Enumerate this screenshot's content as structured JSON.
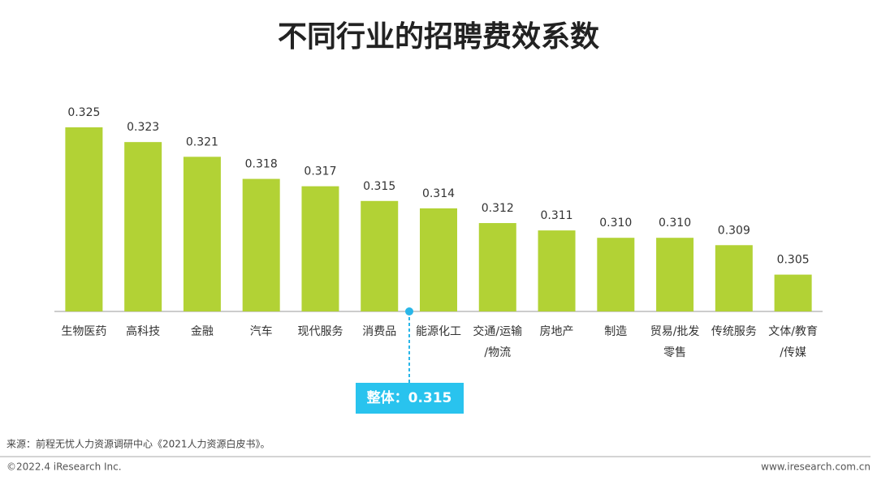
{
  "chart_data": {
    "type": "bar",
    "title": "不同行业的招聘费效系数",
    "categories": [
      "生物医药",
      "高科技",
      "金融",
      "汽车",
      "现代服务",
      "消费品",
      "能源化工",
      "交通/运输/物流",
      "房地产",
      "制造",
      "贸易/批发零售",
      "传统服务",
      "文体/教育/传媒"
    ],
    "values": [
      0.325,
      0.323,
      0.321,
      0.318,
      0.317,
      0.315,
      0.314,
      0.312,
      0.311,
      0.31,
      0.31,
      0.309,
      0.305
    ],
    "value_labels": [
      "0.325",
      "0.323",
      "0.321",
      "0.318",
      "0.317",
      "0.315",
      "0.314",
      "0.312",
      "0.311",
      "0.310",
      "0.310",
      "0.309",
      "0.305"
    ],
    "color": "#b2d235",
    "ylim": [
      0.3,
      0.325
    ],
    "annotation": "整体：0.315"
  },
  "source": "来源：前程无忧人力资源调研中心《2021人力资源白皮书》。",
  "copyright": "©2022.4 iResearch Inc.",
  "website": "www.iresearch.com.cn"
}
